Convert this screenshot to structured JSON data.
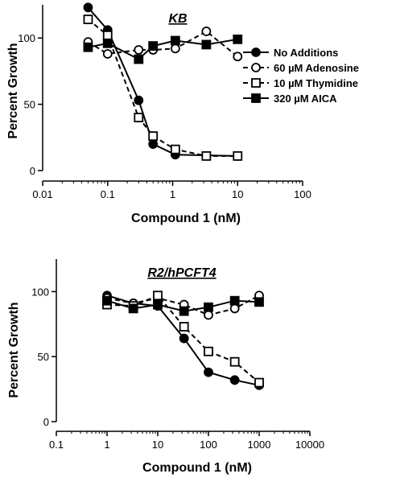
{
  "chart_data": [
    {
      "type": "line",
      "title": "KB",
      "xlabel": "Compound 1 (nM)",
      "ylabel": "Percent Growth",
      "xscale": "log",
      "xlim": [
        0.01,
        100
      ],
      "ylim": [
        0,
        125
      ],
      "xticks": [
        "0.01",
        "0.1",
        "1",
        "10",
        "100"
      ],
      "yticks": [
        "0",
        "50",
        "100"
      ],
      "legend_position": "right",
      "series": [
        {
          "name": "No Additions",
          "marker": "filled-circle",
          "line": "solid",
          "x": [
            0.05,
            0.1,
            0.3,
            0.5,
            1.1,
            10
          ],
          "y": [
            123,
            106,
            53,
            20,
            12,
            11
          ]
        },
        {
          "name": "60 µM Adenosine",
          "marker": "open-circle",
          "line": "dashed",
          "x": [
            0.05,
            0.1,
            0.3,
            0.5,
            1.1,
            3.3,
            10
          ],
          "y": [
            97,
            88,
            91,
            91,
            92,
            105,
            86
          ]
        },
        {
          "name": "10 µM Thymidine",
          "marker": "open-square",
          "line": "dashed",
          "x": [
            0.05,
            0.1,
            0.3,
            0.5,
            1.1,
            3.3,
            10
          ],
          "y": [
            114,
            102,
            40,
            26,
            16,
            11,
            11
          ]
        },
        {
          "name": "320 µM AICA",
          "marker": "filled-square",
          "line": "solid",
          "x": [
            0.05,
            0.1,
            0.3,
            0.5,
            1.1,
            3.3,
            10
          ],
          "y": [
            93,
            96,
            84,
            94,
            98,
            95,
            99
          ]
        }
      ]
    },
    {
      "type": "line",
      "title": "R2/hPCFT4",
      "xlabel": "Compound 1 (nM)",
      "ylabel": "Percent Growth",
      "xscale": "log",
      "xlim": [
        0.1,
        10000
      ],
      "ylim": [
        0,
        125
      ],
      "xticks": [
        "0.1",
        "1",
        "10",
        "100",
        "1000",
        "10000"
      ],
      "yticks": [
        "0",
        "50",
        "100"
      ],
      "series": [
        {
          "name": "No Additions",
          "marker": "filled-circle",
          "line": "solid",
          "x": [
            1,
            3.3,
            10,
            33,
            100,
            330,
            1000
          ],
          "y": [
            97,
            91,
            89,
            64,
            38,
            32,
            28
          ]
        },
        {
          "name": "60 µM Adenosine",
          "marker": "open-circle",
          "line": "dashed",
          "x": [
            1,
            3.3,
            10,
            33,
            100,
            330,
            1000
          ],
          "y": [
            95,
            91,
            95,
            90,
            82,
            87,
            97
          ]
        },
        {
          "name": "10 µM Thymidine",
          "marker": "open-square",
          "line": "dashed",
          "x": [
            1,
            3.3,
            10,
            33,
            100,
            330,
            1000
          ],
          "y": [
            90,
            89,
            97,
            73,
            54,
            46,
            30
          ]
        },
        {
          "name": "320 µM AICA",
          "marker": "filled-square",
          "line": "solid",
          "x": [
            1,
            3.3,
            10,
            33,
            100,
            330,
            1000
          ],
          "y": [
            93,
            87,
            90,
            85,
            88,
            93,
            92
          ]
        }
      ]
    }
  ]
}
